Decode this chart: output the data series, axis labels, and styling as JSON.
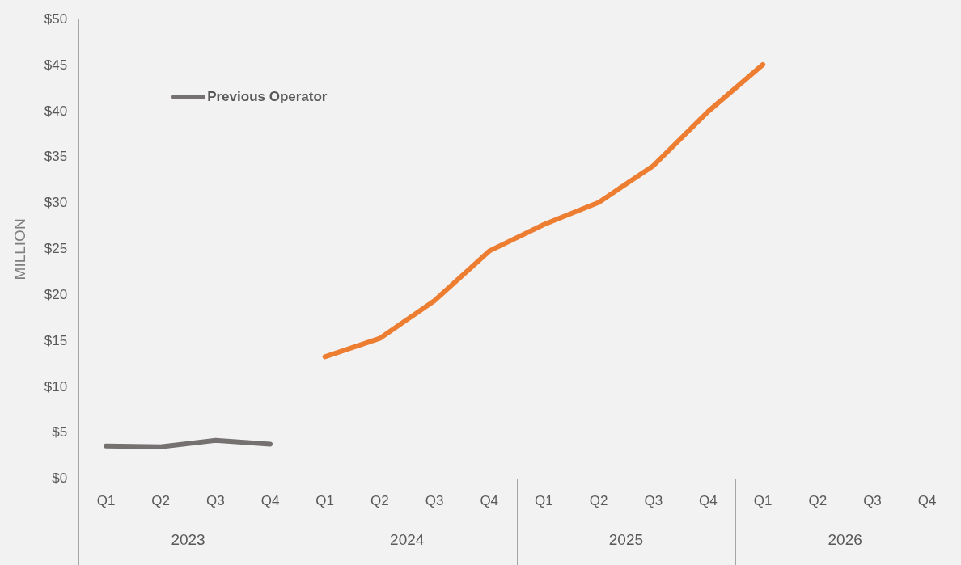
{
  "chart_data": {
    "type": "line",
    "ylabel": "MILLION",
    "categories": [
      "Q1",
      "Q2",
      "Q3",
      "Q4",
      "Q1",
      "Q2",
      "Q3",
      "Q4",
      "Q1",
      "Q2",
      "Q3",
      "Q4",
      "Q1",
      "Q2",
      "Q3",
      "Q4"
    ],
    "annotations": [
      "2023",
      "2024",
      "2025",
      "2026"
    ],
    "series": [
      {
        "name": "Previous Operator",
        "color": "#767171",
        "values": [
          3.6,
          3.5,
          4.2,
          3.8,
          null,
          null,
          null,
          null,
          null,
          null,
          null,
          null,
          null,
          null,
          null,
          null
        ]
      },
      {
        "color": "#ed7d31",
        "values": [
          null,
          null,
          null,
          null,
          13.3,
          15.3,
          19.4,
          24.8,
          27.7,
          30.1,
          34.1,
          40.0,
          45.1,
          null,
          null,
          null
        ]
      }
    ],
    "ylim": [
      0,
      50
    ],
    "yticks": [
      {
        "value": 0,
        "label": "$0"
      },
      {
        "value": 5,
        "label": "$5"
      },
      {
        "value": 10,
        "label": "$10"
      },
      {
        "value": 15,
        "label": "$15"
      },
      {
        "value": 20,
        "label": "$20"
      },
      {
        "value": 25,
        "label": "$25"
      },
      {
        "value": 30,
        "label": "$30"
      },
      {
        "value": 35,
        "label": "$35"
      },
      {
        "value": 40,
        "label": "$40"
      },
      {
        "value": 45,
        "label": "$45"
      },
      {
        "value": 50,
        "label": "$50"
      }
    ],
    "grid": false,
    "legend": "top left",
    "marker": "none",
    "line_style": "solid"
  }
}
